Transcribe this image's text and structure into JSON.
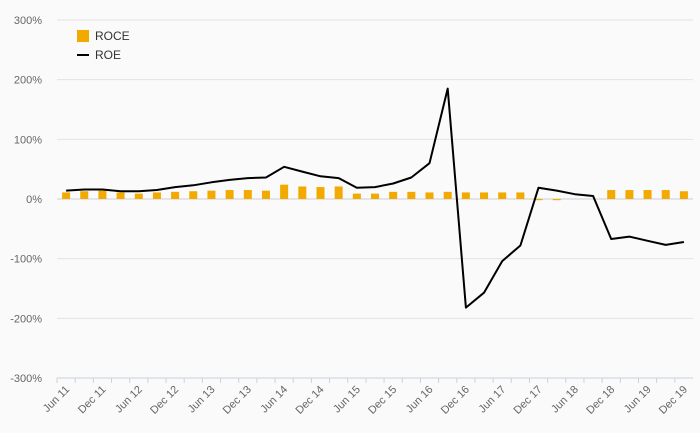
{
  "chart_data": {
    "type": "bar",
    "categories": [
      "Jun 11",
      "Sep 11",
      "Dec 11",
      "Mar 12",
      "Jun 12",
      "Sep 12",
      "Dec 12",
      "Mar 13",
      "Jun 13",
      "Sep 13",
      "Dec 13",
      "Mar 14",
      "Jun 14",
      "Sep 14",
      "Dec 14",
      "Mar 15",
      "Jun 15",
      "Sep 15",
      "Dec 15",
      "Mar 16",
      "Jun 16",
      "Sep 16",
      "Dec 16",
      "Mar 17",
      "Jun 17",
      "Sep 17",
      "Dec 17",
      "Mar 18",
      "Jun 18",
      "Sep 18",
      "Dec 18",
      "Mar 19",
      "Jun 19",
      "Sep 19",
      "Dec 19"
    ],
    "x_tick_labels": [
      "Jun 11",
      "Dec 11",
      "Jun 12",
      "Dec 12",
      "Jun 13",
      "Dec 13",
      "Jun 14",
      "Dec 14",
      "Jun 15",
      "Dec 15",
      "Jun 16",
      "Dec 16",
      "Jun 17",
      "Dec 17",
      "Jun 18",
      "Dec 18",
      "Jun 19",
      "Dec 19"
    ],
    "y_ticks": [
      300,
      200,
      100,
      0,
      -100,
      -200,
      -300
    ],
    "y_tick_labels": [
      "300%",
      "200%",
      "100%",
      "0%",
      "-100%",
      "-200%",
      "-300%"
    ],
    "ylim": [
      -300,
      300
    ],
    "grid": true,
    "legend_position": "top-left",
    "series": [
      {
        "name": "ROCE",
        "type": "bar",
        "color": "#f2a900",
        "values": [
          11,
          13,
          14,
          11,
          9,
          11,
          12,
          13,
          14,
          15,
          15,
          14,
          24,
          21,
          20,
          21,
          9,
          9,
          12,
          12,
          11,
          12,
          11,
          11,
          11,
          11,
          -2,
          -2,
          null,
          null,
          15,
          15,
          15,
          15,
          13
        ]
      },
      {
        "name": "ROE",
        "type": "line",
        "color": "#000000",
        "values": [
          14,
          16,
          16,
          13,
          13,
          15,
          20,
          23,
          28,
          32,
          35,
          36,
          54,
          46,
          38,
          35,
          19,
          20,
          26,
          36,
          60,
          185,
          -182,
          -157,
          -104,
          -78,
          19,
          14,
          8,
          5,
          -67,
          -63,
          -70,
          -77,
          -72
        ]
      }
    ]
  }
}
